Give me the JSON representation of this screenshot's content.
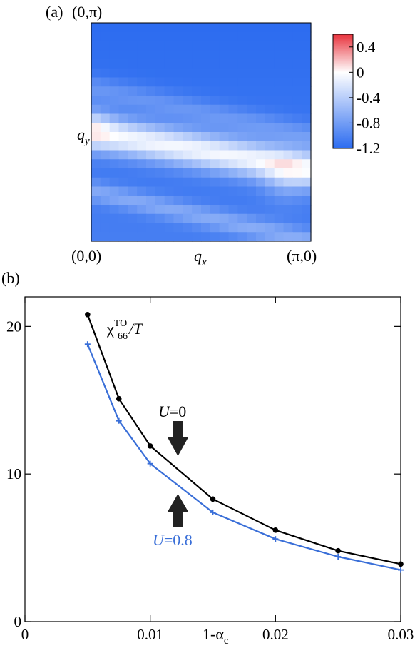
{
  "chart_data": [
    {
      "type": "heatmap",
      "panel_label": "(a)",
      "corner_labels": {
        "top_left": "(0,π)",
        "bottom_left": "(0,0)",
        "bottom_right": "(π,0)"
      },
      "xlabel": {
        "main": "q",
        "sub": "x"
      },
      "ylabel": {
        "main": "q",
        "sub": "y"
      },
      "colorbar": {
        "range": [
          -1.2,
          0.6
        ],
        "ticks": [
          "0.4",
          "0",
          "-0.4",
          "-0.8",
          "-1.2"
        ],
        "tick_values": [
          0.4,
          0,
          -0.4,
          -0.8,
          -1.2
        ],
        "colors": {
          "high": "#e8323c",
          "mid": "#ffffff",
          "low": "#2c6cf0"
        }
      },
      "grid_size": 24
    },
    {
      "type": "line",
      "panel_label": "(b)",
      "xlabel": {
        "main": "1-α",
        "sub": "c"
      },
      "xlim": [
        0,
        0.03
      ],
      "ylim": [
        0,
        22
      ],
      "xticks": [
        0,
        0.01,
        0.02,
        0.03
      ],
      "xtick_labels": [
        "0",
        "0.01",
        "0.02",
        "0.03"
      ],
      "yticks": [
        0,
        10,
        20
      ],
      "ytick_labels": [
        "0",
        "10",
        "20"
      ],
      "series": [
        {
          "name": "U=0",
          "color": "#000000",
          "marker": "circle",
          "x": [
            0.005,
            0.0075,
            0.01,
            0.015,
            0.02,
            0.025,
            0.03
          ],
          "y": [
            20.8,
            15.1,
            11.9,
            8.3,
            6.2,
            4.8,
            3.9
          ]
        },
        {
          "name": "U=0.8",
          "color": "#3a6fd8",
          "marker": "plus",
          "x": [
            0.005,
            0.0075,
            0.01,
            0.015,
            0.02,
            0.025,
            0.03
          ],
          "y": [
            18.8,
            13.6,
            10.7,
            7.4,
            5.6,
            4.4,
            3.5
          ]
        }
      ],
      "annotations": {
        "quantity": {
          "chi": "χ",
          "sup": "TO",
          "sub": "66",
          "rest": "/T"
        },
        "u0": {
          "var": "U",
          "rest": "=0"
        },
        "u08": {
          "var": "U",
          "rest": "=0.8"
        }
      }
    }
  ]
}
